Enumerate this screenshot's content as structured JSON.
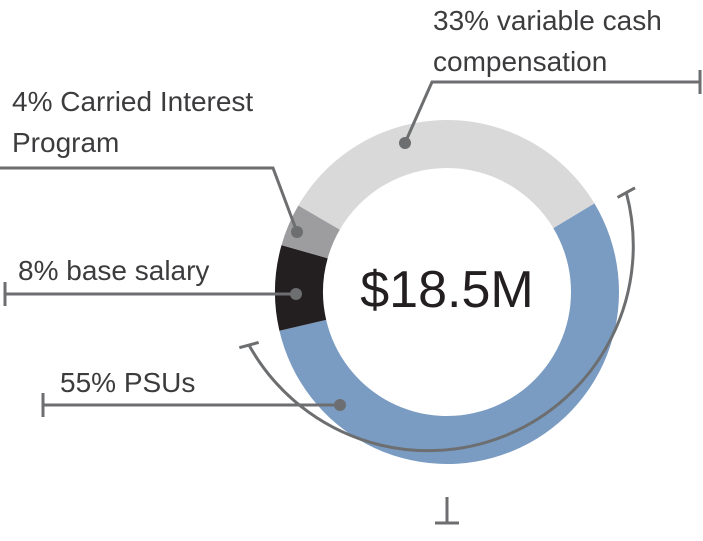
{
  "chart_data": {
    "type": "donut",
    "center_label": "$18.5M",
    "categories": [
      "PSUs",
      "base salary",
      "Carried Interest Program",
      "variable cash compensation"
    ],
    "values": [
      55,
      8,
      4,
      33
    ],
    "value_labels": [
      "55%",
      "8%",
      "4%",
      "33%"
    ],
    "colors": [
      "#7b9cc2",
      "#231f20",
      "#9d9c9e",
      "#d9d9d9"
    ]
  }
}
